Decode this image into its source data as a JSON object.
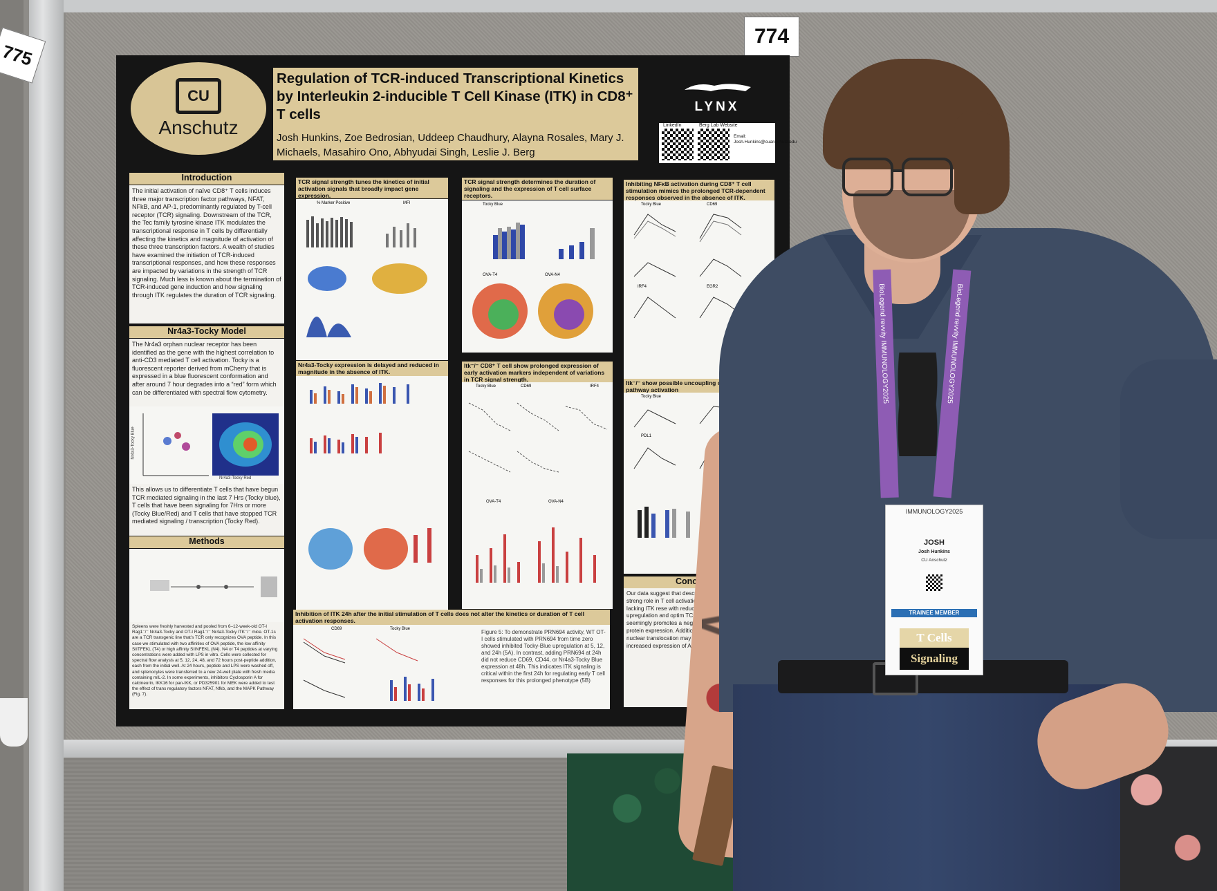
{
  "scene": {
    "board_numbers": {
      "current": "774",
      "neighbor": "775"
    }
  },
  "poster": {
    "logo_text": "Anschutz",
    "logo_mark": "CU",
    "title": "Regulation of TCR-induced Transcriptional Kinetics by Interleukin 2-inducible T Cell Kinase (ITK) in CD8⁺ T cells",
    "authors": "Josh Hunkins, Zoe Bedrosian, Uddeep Chaudhury, Alayna Rosales, Mary J. Michaels, Masahiro Ono, Abhyudai Singh, Leslie J. Berg",
    "lab_logo": "LYNX",
    "qr": {
      "linkedin_label": "LinkedIn",
      "berg_label": "Berg Lab Website",
      "email_label": "Email:",
      "email": "Josh.Hunkins@cuanschutz.edu"
    },
    "sections": {
      "intro_head": "Introduction",
      "intro_body": "The initial activation of naïve CD8⁺ T cells induces three major transcription factor pathways, NFAT, NFkB, and AP-1, predominantly regulated by T-cell receptor (TCR) signaling. Downstream of the TCR, the Tec family tyrosine kinase ITK modulates the transcriptional response in T cells by differentially affecting the kinetics and magnitude of activation of these three transcription factors. A wealth of studies have examined the initiation of TCR-induced transcriptional responses, and how these responses are impacted by variations in the strength of TCR signaling. Much less is known about the termination of TCR-induced gene induction and how signaling through ITK regulates the duration of TCR signaling.",
      "nr4a3_head": "Nr4a3-Tocky Model",
      "nr4a3_body": "The Nr4a3 orphan nuclear receptor has been identified as the gene with the highest correlation to anti-CD3 mediated T cell activation. Tocky is a fluorescent reporter derived from mCherry that is expressed in a blue fluorescent conformation and after around 7 hour degrades into a “red” form which can be differentiated with spectral flow cytometry.",
      "nr4a3_body2": "This allows us to differentiate T cells that have begun TCR mediated signaling in the last 7 Hrs (Tocky blue), T cells that have been signaling for 7Hrs or more (Tocky Blue/Red) and T cells that have stopped TCR mediated signaling / transcription (Tocky Red).",
      "tocky_axis_x": "Nr4a3-Tocky Red",
      "tocky_axis_y": "Nr4a3-Tocky Blue",
      "methods_head": "Methods",
      "methods_body": "Spleens were freshly harvested and pooled from 6–12-week-old OT-I Rag1⁻/⁻ Nr4a3-Tocky and OT-I Rag1⁻/⁻ Nr4a3-Tocky ITK⁻/⁻ mice. OT-1s are a TCR transgenic line that’s TCR only recognizes OVA peptide. In this case we stimulated with two affinities of OVA peptide, the low affinity SIITFEKL (T4) or high affinity SIINFEKL (N4). N4 or T4 peptides at varying concentrations were added with LPS in vitro. Cells were collected for spectral flow analysis at 5, 12, 24, 48, and 72 hours post-peptide addition, each from the initial well. At 24 hours, peptide and LPS were washed off, and splenocytes were transferred to a new 24-well plate with fresh media containing mIL-2. In some experiments, inhibitors Cyclosporin A for calcineurin, IKK16 for pan-IKK, or PD325901 for MEK were added to test the effect of trans regulatory factors NFAT, Nfkb, and the MAPK Pathway (Fig. 7).",
      "c2_h1": "TCR signal strength tunes the kinetics of initial activation signals that broadly impact gene expression.",
      "c2_h2": "Nr4a3-Tocky expression is delayed and reduced in magnitude in the absence of ITK.",
      "c2_h3": "Inhibition of ITK 24h after the initial stimulation of T cells does not alter the kinetics or duration of T cell activation responses.",
      "c2_caption": "Figure 5: To demonstrate PRN694 activity, WT OT-I cells stimulated with PRN694 from time zero showed inhibited Tocky-Blue upregulation at 5, 12, and 24h (5A). In contrast, adding PRN694 at 24h did not reduce CD69, CD44, or Nr4a3-Tocky Blue expression at 48h. This indicates ITK signaling is critical within the first 24h for regulating early T cell responses for this prolonged phenotype (5B)",
      "c3_h1": "TCR signal strength determines the duration of signaling and the expression of T cell surface receptors.",
      "c3_h2": "Itk⁻/⁻ CD8⁺ T cell show prolonged expression of early activation markers independent of variations in TCR signal strength.",
      "c4_h1": "Inhibiting NFκB activation during CD8⁺ T cell stimulation mimics the prolonged TCR-dependent responses observed in the absence of ITK.",
      "c4_h2": "Itk⁻/⁻ show possible uncoupling of NFAT and pathway activation",
      "concl_head": "Conclusion",
      "concl_body": "Our data suggest that describ regulator of “TCR signal streng role in T cell activation. Early a CD8⁺ T cells lacking ITK rese with reduced TCR-pMHC affi rapid upregulation and optim TCR-induced proteins. In the seemingly promotes a nega pathway, likely through NFk protein expression. Addition inhibition) or delaying (via I nuclear translocation may e limiting NFAT/AP-1 comple increased expression of A NFAT/AP-1–regulated, ge"
    },
    "panel_labels": {
      "tocky_blue": "Tocky Blue",
      "cd69": "CD69",
      "irf4": "IRF4",
      "egr2": "EGR2",
      "pdl1": "PDL1",
      "ova_t4": "OVA-T4",
      "ova_n4": "OVA-N4",
      "marker_positive": "% Marker Positive",
      "mfi": "MFI"
    }
  },
  "badge": {
    "event": "IMMUNOLOGY2025",
    "first_name": "JOSH",
    "full_name": "Josh Hunkins",
    "org": "CU Anschutz",
    "member_type": "TRAINEE MEMBER",
    "ribbon_1": "T Cells",
    "ribbon_2": "Signaling"
  },
  "lanyard": {
    "text": "BioLegend  revvity  IMMUNOLOGY2025"
  }
}
